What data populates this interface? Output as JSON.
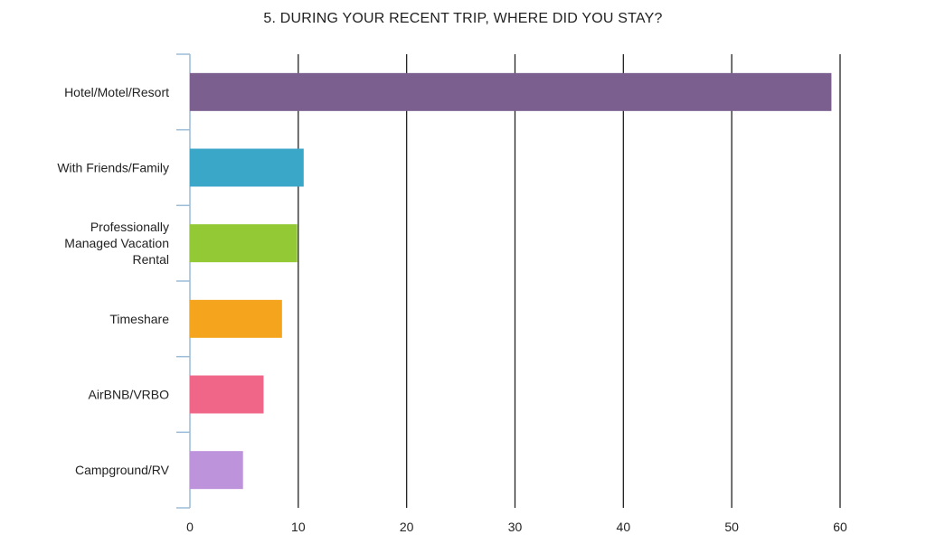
{
  "chart_data": {
    "type": "bar",
    "orientation": "horizontal",
    "title": "5. DURING YOUR RECENT TRIP, WHERE DID YOU STAY?",
    "categories": [
      [
        "Hotel/Motel/Resort"
      ],
      [
        "With Friends/Family"
      ],
      [
        "Professionally",
        "Managed Vacation",
        "Rental"
      ],
      [
        "Timeshare"
      ],
      [
        "AirBNB/VRBO"
      ],
      [
        "Campground/RV"
      ]
    ],
    "values": [
      59.2,
      10.5,
      9.9,
      8.5,
      6.8,
      4.9
    ],
    "colors": [
      "#7b5f8f",
      "#3ba7c8",
      "#93c935",
      "#f5a51d",
      "#ef6688",
      "#bd93dc"
    ],
    "xlim": [
      0,
      60
    ],
    "xticks": [
      0,
      10,
      20,
      30,
      40,
      50,
      60
    ],
    "grid": true,
    "xlabel": "",
    "ylabel": ""
  }
}
